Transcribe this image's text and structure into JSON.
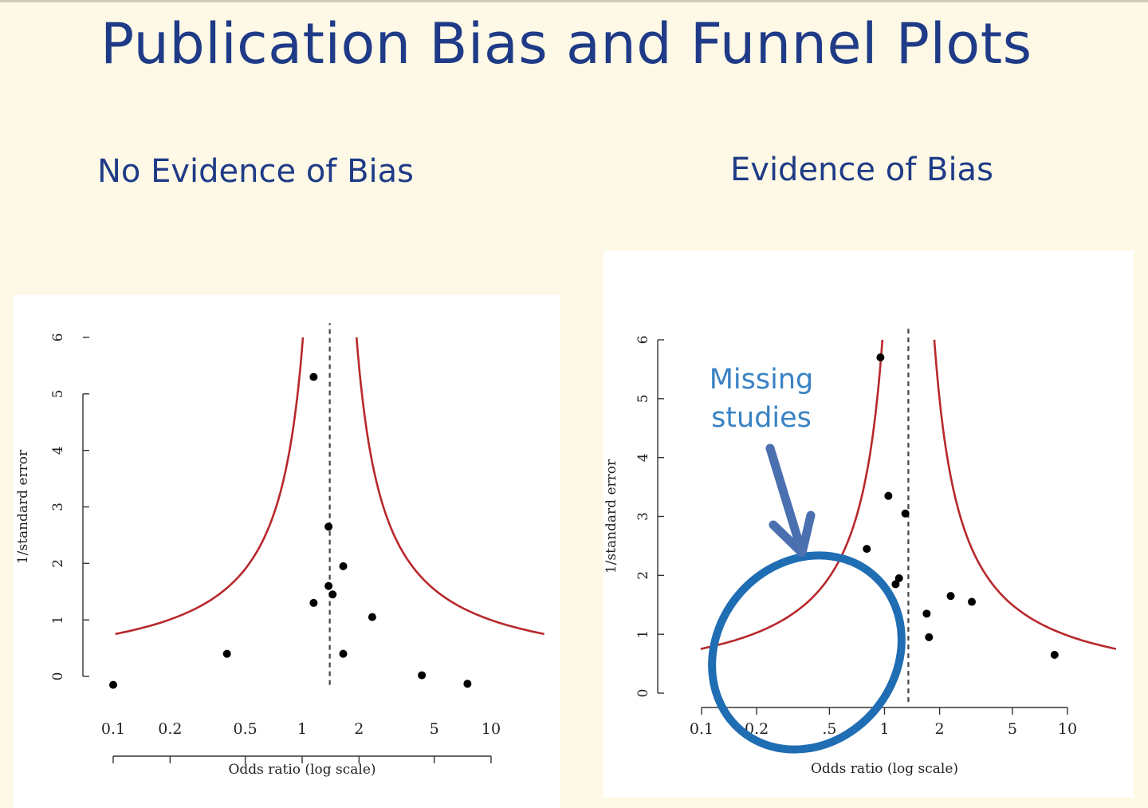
{
  "slide": {
    "title": "Publication Bias and Funnel Plots",
    "left_heading": "No Evidence of Bias",
    "right_heading": "Evidence of Bias",
    "annotation_line1": "Missing",
    "annotation_line2": "studies"
  },
  "colors": {
    "background": "#fdf9e6",
    "title": "#1f3b87",
    "funnel_line": "#b8282b",
    "points": "#000000",
    "annotation": "#3a82c4",
    "ellipse": "#1f6db3",
    "arrow": "#4a70b0"
  },
  "chart_data": [
    {
      "type": "scatter",
      "title": "No Evidence of Bias",
      "xlabel": "Odds ratio (log scale)",
      "ylabel": "1/standard error",
      "x_scale": "log",
      "xlim": [
        0.1,
        10
      ],
      "ylim": [
        0,
        6
      ],
      "x_ticks": [
        0.1,
        0.2,
        0.5,
        1,
        2,
        5,
        10
      ],
      "x_tick_labels": [
        "0.1",
        "0.2",
        "0.5",
        "1",
        "2",
        "5",
        "10"
      ],
      "y_ticks": [
        0,
        1,
        2,
        3,
        4,
        5,
        6
      ],
      "y_tick_labels": [
        "0",
        "1",
        "2",
        "3",
        "4",
        "5",
        "6"
      ],
      "summary_odds_ratio": 1.4,
      "funnel": "pseudo 95% confidence limits (red curves)",
      "points": [
        {
          "x": 0.1,
          "y": -0.15
        },
        {
          "x": 0.4,
          "y": 0.4
        },
        {
          "x": 1.15,
          "y": 5.3
        },
        {
          "x": 1.15,
          "y": 1.3
        },
        {
          "x": 1.38,
          "y": 2.65
        },
        {
          "x": 1.38,
          "y": 1.6
        },
        {
          "x": 1.45,
          "y": 1.45
        },
        {
          "x": 1.65,
          "y": 1.95
        },
        {
          "x": 1.65,
          "y": 0.4
        },
        {
          "x": 2.35,
          "y": 1.05
        },
        {
          "x": 4.3,
          "y": 0.02
        },
        {
          "x": 7.5,
          "y": -0.13
        }
      ]
    },
    {
      "type": "scatter",
      "title": "Evidence of Bias",
      "xlabel": "Odds ratio (log scale)",
      "ylabel": "1/standard error",
      "x_scale": "log",
      "xlim": [
        0.1,
        10
      ],
      "ylim": [
        0,
        6
      ],
      "x_ticks": [
        0.1,
        0.2,
        0.5,
        1,
        2,
        5,
        10
      ],
      "x_tick_labels": [
        "0.1",
        "0.2",
        ".5",
        "1",
        "2",
        "5",
        "10"
      ],
      "y_ticks": [
        0,
        1,
        2,
        3,
        4,
        5,
        6
      ],
      "y_tick_labels": [
        "0",
        "1",
        "2",
        "3",
        "4",
        "5",
        "6"
      ],
      "summary_odds_ratio": 1.35,
      "funnel": "pseudo 95% confidence limits (red curves)",
      "annotation": "Missing studies",
      "points": [
        {
          "x": 0.95,
          "y": 5.7
        },
        {
          "x": 1.05,
          "y": 3.35
        },
        {
          "x": 1.3,
          "y": 3.05
        },
        {
          "x": 0.8,
          "y": 2.45
        },
        {
          "x": 1.2,
          "y": 1.95
        },
        {
          "x": 1.15,
          "y": 1.85
        },
        {
          "x": 2.3,
          "y": 1.65
        },
        {
          "x": 3.0,
          "y": 1.55
        },
        {
          "x": 1.7,
          "y": 1.35
        },
        {
          "x": 1.75,
          "y": 0.95
        },
        {
          "x": 8.5,
          "y": 0.65
        }
      ]
    }
  ]
}
